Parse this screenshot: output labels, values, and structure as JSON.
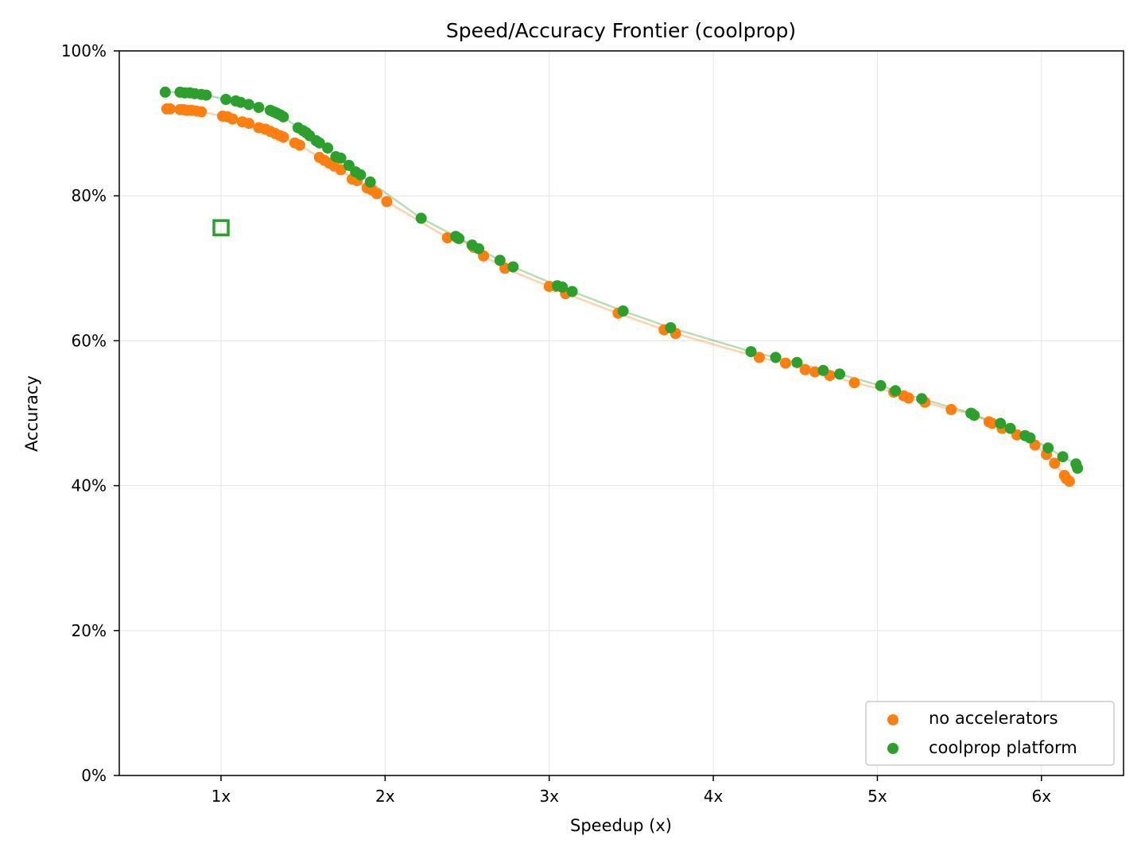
{
  "chart_data": {
    "type": "scatter",
    "title": "Speed/Accuracy Frontier (coolprop)",
    "xlabel": "Speedup (x)",
    "ylabel": "Accuracy",
    "xlim": [
      0.38,
      6.5
    ],
    "ylim": [
      0,
      100
    ],
    "x_ticks": [
      1,
      2,
      3,
      4,
      5,
      6
    ],
    "x_tick_labels": [
      "1x",
      "2x",
      "3x",
      "4x",
      "5x",
      "6x"
    ],
    "y_ticks": [
      0,
      20,
      40,
      60,
      80,
      100
    ],
    "y_tick_labels": [
      "0%",
      "20%",
      "40%",
      "60%",
      "80%",
      "100%"
    ],
    "grid": true,
    "legend_position": "bottom-right",
    "baseline_marker": {
      "x": 1.0,
      "y": 75.6,
      "shape": "hollow-square",
      "color": "#2ca02c"
    },
    "series": [
      {
        "name": "no accelerators",
        "color": "#ff7f0e",
        "points": [
          [
            0.67,
            92.0
          ],
          [
            0.69,
            92.0
          ],
          [
            0.75,
            91.9
          ],
          [
            0.77,
            91.9
          ],
          [
            0.79,
            91.8
          ],
          [
            0.82,
            91.8
          ],
          [
            0.85,
            91.7
          ],
          [
            0.88,
            91.6
          ],
          [
            1.01,
            91.0
          ],
          [
            1.04,
            90.9
          ],
          [
            1.07,
            90.6
          ],
          [
            1.13,
            90.2
          ],
          [
            1.17,
            90.0
          ],
          [
            1.23,
            89.4
          ],
          [
            1.27,
            89.2
          ],
          [
            1.3,
            88.9
          ],
          [
            1.33,
            88.6
          ],
          [
            1.36,
            88.3
          ],
          [
            1.38,
            88.1
          ],
          [
            1.45,
            87.3
          ],
          [
            1.48,
            87.0
          ],
          [
            1.6,
            85.3
          ],
          [
            1.63,
            84.9
          ],
          [
            1.66,
            84.5
          ],
          [
            1.69,
            84.1
          ],
          [
            1.73,
            83.6
          ],
          [
            1.8,
            82.3
          ],
          [
            1.83,
            82.1
          ],
          [
            1.89,
            81.1
          ],
          [
            1.92,
            80.8
          ],
          [
            1.95,
            80.3
          ],
          [
            2.01,
            79.2
          ],
          [
            2.38,
            74.2
          ],
          [
            2.44,
            74.2
          ],
          [
            2.54,
            72.9
          ],
          [
            2.6,
            71.7
          ],
          [
            2.73,
            70.0
          ],
          [
            3.0,
            67.5
          ],
          [
            3.04,
            67.5
          ],
          [
            3.1,
            66.5
          ],
          [
            3.42,
            63.8
          ],
          [
            3.7,
            61.5
          ],
          [
            3.77,
            61.0
          ],
          [
            4.28,
            57.7
          ],
          [
            4.44,
            56.9
          ],
          [
            4.56,
            56.0
          ],
          [
            4.62,
            55.7
          ],
          [
            4.71,
            55.2
          ],
          [
            4.86,
            54.2
          ],
          [
            5.1,
            52.9
          ],
          [
            5.16,
            52.4
          ],
          [
            5.19,
            52.1
          ],
          [
            5.29,
            51.5
          ],
          [
            5.45,
            50.5
          ],
          [
            5.58,
            49.9
          ],
          [
            5.68,
            48.8
          ],
          [
            5.7,
            48.6
          ],
          [
            5.76,
            47.9
          ],
          [
            5.85,
            47.0
          ],
          [
            5.96,
            45.6
          ],
          [
            6.03,
            44.3
          ],
          [
            6.08,
            43.1
          ],
          [
            6.14,
            41.4
          ],
          [
            6.15,
            41.0
          ],
          [
            6.17,
            40.6
          ]
        ]
      },
      {
        "name": "coolprop platform",
        "color": "#2ca02c",
        "points": [
          [
            0.66,
            94.3
          ],
          [
            0.75,
            94.3
          ],
          [
            0.78,
            94.2
          ],
          [
            0.81,
            94.2
          ],
          [
            0.84,
            94.1
          ],
          [
            0.88,
            94.0
          ],
          [
            0.91,
            93.9
          ],
          [
            1.03,
            93.3
          ],
          [
            1.09,
            93.1
          ],
          [
            1.12,
            92.9
          ],
          [
            1.17,
            92.6
          ],
          [
            1.23,
            92.2
          ],
          [
            1.3,
            91.8
          ],
          [
            1.32,
            91.6
          ],
          [
            1.34,
            91.4
          ],
          [
            1.36,
            91.2
          ],
          [
            1.38,
            90.9
          ],
          [
            1.47,
            89.4
          ],
          [
            1.5,
            89.0
          ],
          [
            1.52,
            88.7
          ],
          [
            1.54,
            88.3
          ],
          [
            1.58,
            87.6
          ],
          [
            1.6,
            87.3
          ],
          [
            1.65,
            86.6
          ],
          [
            1.7,
            85.4
          ],
          [
            1.73,
            85.2
          ],
          [
            1.78,
            84.2
          ],
          [
            1.82,
            83.3
          ],
          [
            1.85,
            82.9
          ],
          [
            1.91,
            81.9
          ],
          [
            2.22,
            76.9
          ],
          [
            2.43,
            74.4
          ],
          [
            2.45,
            74.1
          ],
          [
            2.53,
            73.2
          ],
          [
            2.57,
            72.7
          ],
          [
            2.7,
            71.1
          ],
          [
            2.78,
            70.2
          ],
          [
            3.05,
            67.6
          ],
          [
            3.08,
            67.4
          ],
          [
            3.14,
            66.8
          ],
          [
            3.45,
            64.1
          ],
          [
            3.74,
            61.8
          ],
          [
            4.23,
            58.5
          ],
          [
            4.38,
            57.7
          ],
          [
            4.51,
            57.0
          ],
          [
            4.67,
            55.9
          ],
          [
            4.77,
            55.4
          ],
          [
            5.02,
            53.8
          ],
          [
            5.11,
            53.1
          ],
          [
            5.27,
            52.0
          ],
          [
            5.57,
            50.0
          ],
          [
            5.59,
            49.7
          ],
          [
            5.75,
            48.6
          ],
          [
            5.81,
            47.9
          ],
          [
            5.9,
            46.9
          ],
          [
            5.93,
            46.6
          ],
          [
            6.04,
            45.2
          ],
          [
            6.13,
            44.0
          ],
          [
            6.21,
            43.0
          ],
          [
            6.22,
            42.4
          ]
        ]
      }
    ]
  }
}
